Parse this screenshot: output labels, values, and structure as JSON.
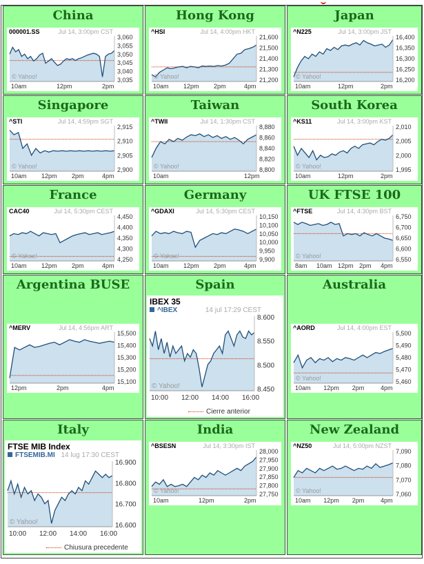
{
  "markets": [
    {
      "key": "china",
      "title": "China",
      "symbol": "000001.SS",
      "header": "Jul 14, 3:00pm CST",
      "yticks": [
        "3,060",
        "3,055",
        "3,050",
        "3,045",
        "3,040",
        "3,035"
      ],
      "ytick_values": [
        3060,
        3055,
        3050,
        3045,
        3040,
        3035
      ],
      "xticks": [
        "10am",
        "12pm",
        "2pm"
      ],
      "watermark": "© Yahoo!"
    },
    {
      "key": "hongkong",
      "title": "Hong Kong",
      "symbol": "^HSI",
      "header": "Jul 14, 4:00pm HKT",
      "yticks": [
        "21,600",
        "21,500",
        "21,400",
        "21,300",
        "21,200"
      ],
      "ytick_values": [
        21600,
        21500,
        21400,
        21300,
        21200
      ],
      "xticks": [
        "10am",
        "12pm",
        "2pm",
        "4pm"
      ],
      "watermark": "© Yahoo!"
    },
    {
      "key": "japan",
      "title": "Japan",
      "symbol": "^N225",
      "header": "Jul 14, 3:00pm JST",
      "yticks": [
        "16,400",
        "16,350",
        "16,300",
        "16,250",
        "16,200"
      ],
      "ytick_values": [
        16400,
        16350,
        16300,
        16250,
        16200
      ],
      "xticks": [
        "10am",
        "12pm",
        "2pm"
      ],
      "watermark": "© Yahoo!"
    },
    {
      "key": "singapore",
      "title": "Singapore",
      "symbol": "^STI",
      "header": "Jul 14, 4:59pm SGT",
      "yticks": [
        "2,915",
        "2,910",
        "2,905",
        "2,900"
      ],
      "ytick_values": [
        2915,
        2910,
        2905,
        2900
      ],
      "xticks": [
        "10am",
        "12pm",
        "2pm",
        "4pm"
      ],
      "watermark": "© Yahoo!"
    },
    {
      "key": "taiwan",
      "title": "Taiwan",
      "symbol": "^TWII",
      "header": "Jul 14, 1:30pm CST",
      "yticks": [
        "8,880",
        "8,860",
        "8,840",
        "8,820",
        "8,800"
      ],
      "ytick_values": [
        8880,
        8860,
        8840,
        8820,
        8800
      ],
      "xticks": [
        "10am",
        "12pm"
      ],
      "watermark": "© Yahoo!"
    },
    {
      "key": "southkorea",
      "title": "South Korea",
      "symbol": "^KS11",
      "header": "Jul 14, 3:00pm KST",
      "yticks": [
        "2,010",
        "2,005",
        "2,000",
        "1,995"
      ],
      "ytick_values": [
        2010,
        2005,
        2000,
        1995
      ],
      "xticks": [
        "10am",
        "12pm",
        "2pm"
      ],
      "watermark": "© Yahoo!"
    },
    {
      "key": "france",
      "title": "France",
      "symbol": "CAC40",
      "header": "Jul 14, 5:30pm CEST",
      "yticks": [
        "4,450",
        "4,400",
        "4,350",
        "4,300",
        "4,250"
      ],
      "ytick_values": [
        4450,
        4400,
        4350,
        4300,
        4250
      ],
      "xticks": [
        "10am",
        "12pm",
        "2pm",
        "4pm"
      ],
      "watermark": "© Yahoo!"
    },
    {
      "key": "germany",
      "title": "Germany",
      "symbol": "^GDAXI",
      "header": "Jul 14, 5:30pm CEST",
      "yticks": [
        "10,150",
        "10,100",
        "10,050",
        "10,000",
        "9,950",
        "9,900"
      ],
      "ytick_values": [
        10150,
        10100,
        10050,
        10000,
        9950,
        9900
      ],
      "xticks": [
        "10am",
        "12pm",
        "2pm",
        "4pm"
      ],
      "watermark": "© Yahoo!"
    },
    {
      "key": "uk",
      "title": "UK FTSE 100",
      "symbol": "^FTSE",
      "header": "Jul 14, 4:30pm BST",
      "yticks": [
        "6,750",
        "6,700",
        "6,650",
        "6,600",
        "6,550"
      ],
      "ytick_values": [
        6750,
        6700,
        6650,
        6600,
        6550
      ],
      "xticks": [
        "8am",
        "10am",
        "12pm",
        "2pm",
        "4pm"
      ],
      "watermark": "© Yahoo!"
    },
    {
      "key": "argentina",
      "title": "Argentina BUSE",
      "symbol": "^MERV",
      "header": "Jul 14, 4:56pm ART",
      "yticks": [
        "15,500",
        "15,400",
        "15,300",
        "15,200",
        "15,100"
      ],
      "ytick_values": [
        15500,
        15400,
        15300,
        15200,
        15100
      ],
      "xticks": [
        "12pm",
        "2pm",
        "4pm"
      ],
      "watermark": ""
    },
    {
      "key": "spain",
      "title": "Spain",
      "chart_title": "IBEX 35",
      "symbol": "^IBEX",
      "header": "14 jul 17:29 CEST",
      "yticks": [
        "8.600",
        "8.550",
        "8.500",
        "8.450"
      ],
      "ytick_values": [
        8600,
        8550,
        8500,
        8450
      ],
      "xticks": [
        "10:00",
        "12:00",
        "14:00",
        "16:00"
      ],
      "watermark": "© Yahoo!",
      "legend": "Cierre anterior"
    },
    {
      "key": "australia",
      "title": "Australia",
      "symbol": "^AORD",
      "header": "Jul 14, 4:00pm EST",
      "yticks": [
        "5,500",
        "5,490",
        "5,480",
        "5,470",
        "5,460"
      ],
      "ytick_values": [
        5500,
        5490,
        5480,
        5470,
        5460
      ],
      "xticks": [
        "10am",
        "12pm",
        "2pm",
        "4pm"
      ],
      "watermark": "© Yahoo!"
    },
    {
      "key": "italy",
      "title": "Italy",
      "chart_title": "FTSE MIB Index",
      "symbol": "FTSEMIB.MI",
      "header": "14 lug 17:30 CEST",
      "yticks": [
        "16.900",
        "16.800",
        "16.700",
        "16.600"
      ],
      "ytick_values": [
        16900,
        16800,
        16700,
        16600
      ],
      "xticks": [
        "10:00",
        "12:00",
        "14:00",
        "16:00"
      ],
      "watermark": "© Yahoo!",
      "legend": "Chiusura precedente"
    },
    {
      "key": "india",
      "title": "India",
      "symbol": "^BSESN",
      "header": "Jul 14, 3:30pm IST",
      "yticks": [
        "28,000",
        "27,950",
        "27,900",
        "27,850",
        "27,800",
        "27,750"
      ],
      "ytick_values": [
        28000,
        27950,
        27900,
        27850,
        27800,
        27750
      ],
      "xticks": [
        "10am",
        "12pm",
        "2pm"
      ],
      "watermark": "© Yahoo!"
    },
    {
      "key": "newzealand",
      "title": "New Zealand",
      "symbol": "^NZ50",
      "header": "Jul 14, 5:00pm NZST",
      "yticks": [
        "7,090",
        "7,080",
        "7,070",
        "7,060"
      ],
      "ytick_values": [
        7090,
        7080,
        7070,
        7060
      ],
      "xticks": [
        "10am",
        "12pm",
        "2pm",
        "4pm"
      ],
      "watermark": "© Yahoo!"
    }
  ],
  "colors": {
    "cell_bg": "#99ff99",
    "title": "#1a6a1a",
    "line": "#1f4e79",
    "fill": "#cce0ee",
    "prev_close": "#cc3300"
  },
  "chart_data": [
    {
      "type": "area",
      "title": "^HSI",
      "ylim": [
        21200,
        21600
      ],
      "prev_close": 21320,
      "x": [
        0,
        0.05,
        0.1,
        0.15,
        0.2,
        0.25,
        0.3,
        0.35,
        0.4,
        0.45,
        0.5,
        0.55,
        0.6,
        0.65,
        0.7,
        0.75,
        0.8,
        0.85,
        0.9,
        0.95,
        1
      ],
      "series": [
        {
          "values": [
            21300,
            21220,
            21280,
            21300,
            21310,
            21320,
            21340,
            21330,
            21345,
            21330,
            21335,
            21340,
            21335,
            21340,
            21360,
            21420,
            21450,
            21470,
            21500,
            21510,
            21560
          ]
        }
      ]
    }
  ]
}
